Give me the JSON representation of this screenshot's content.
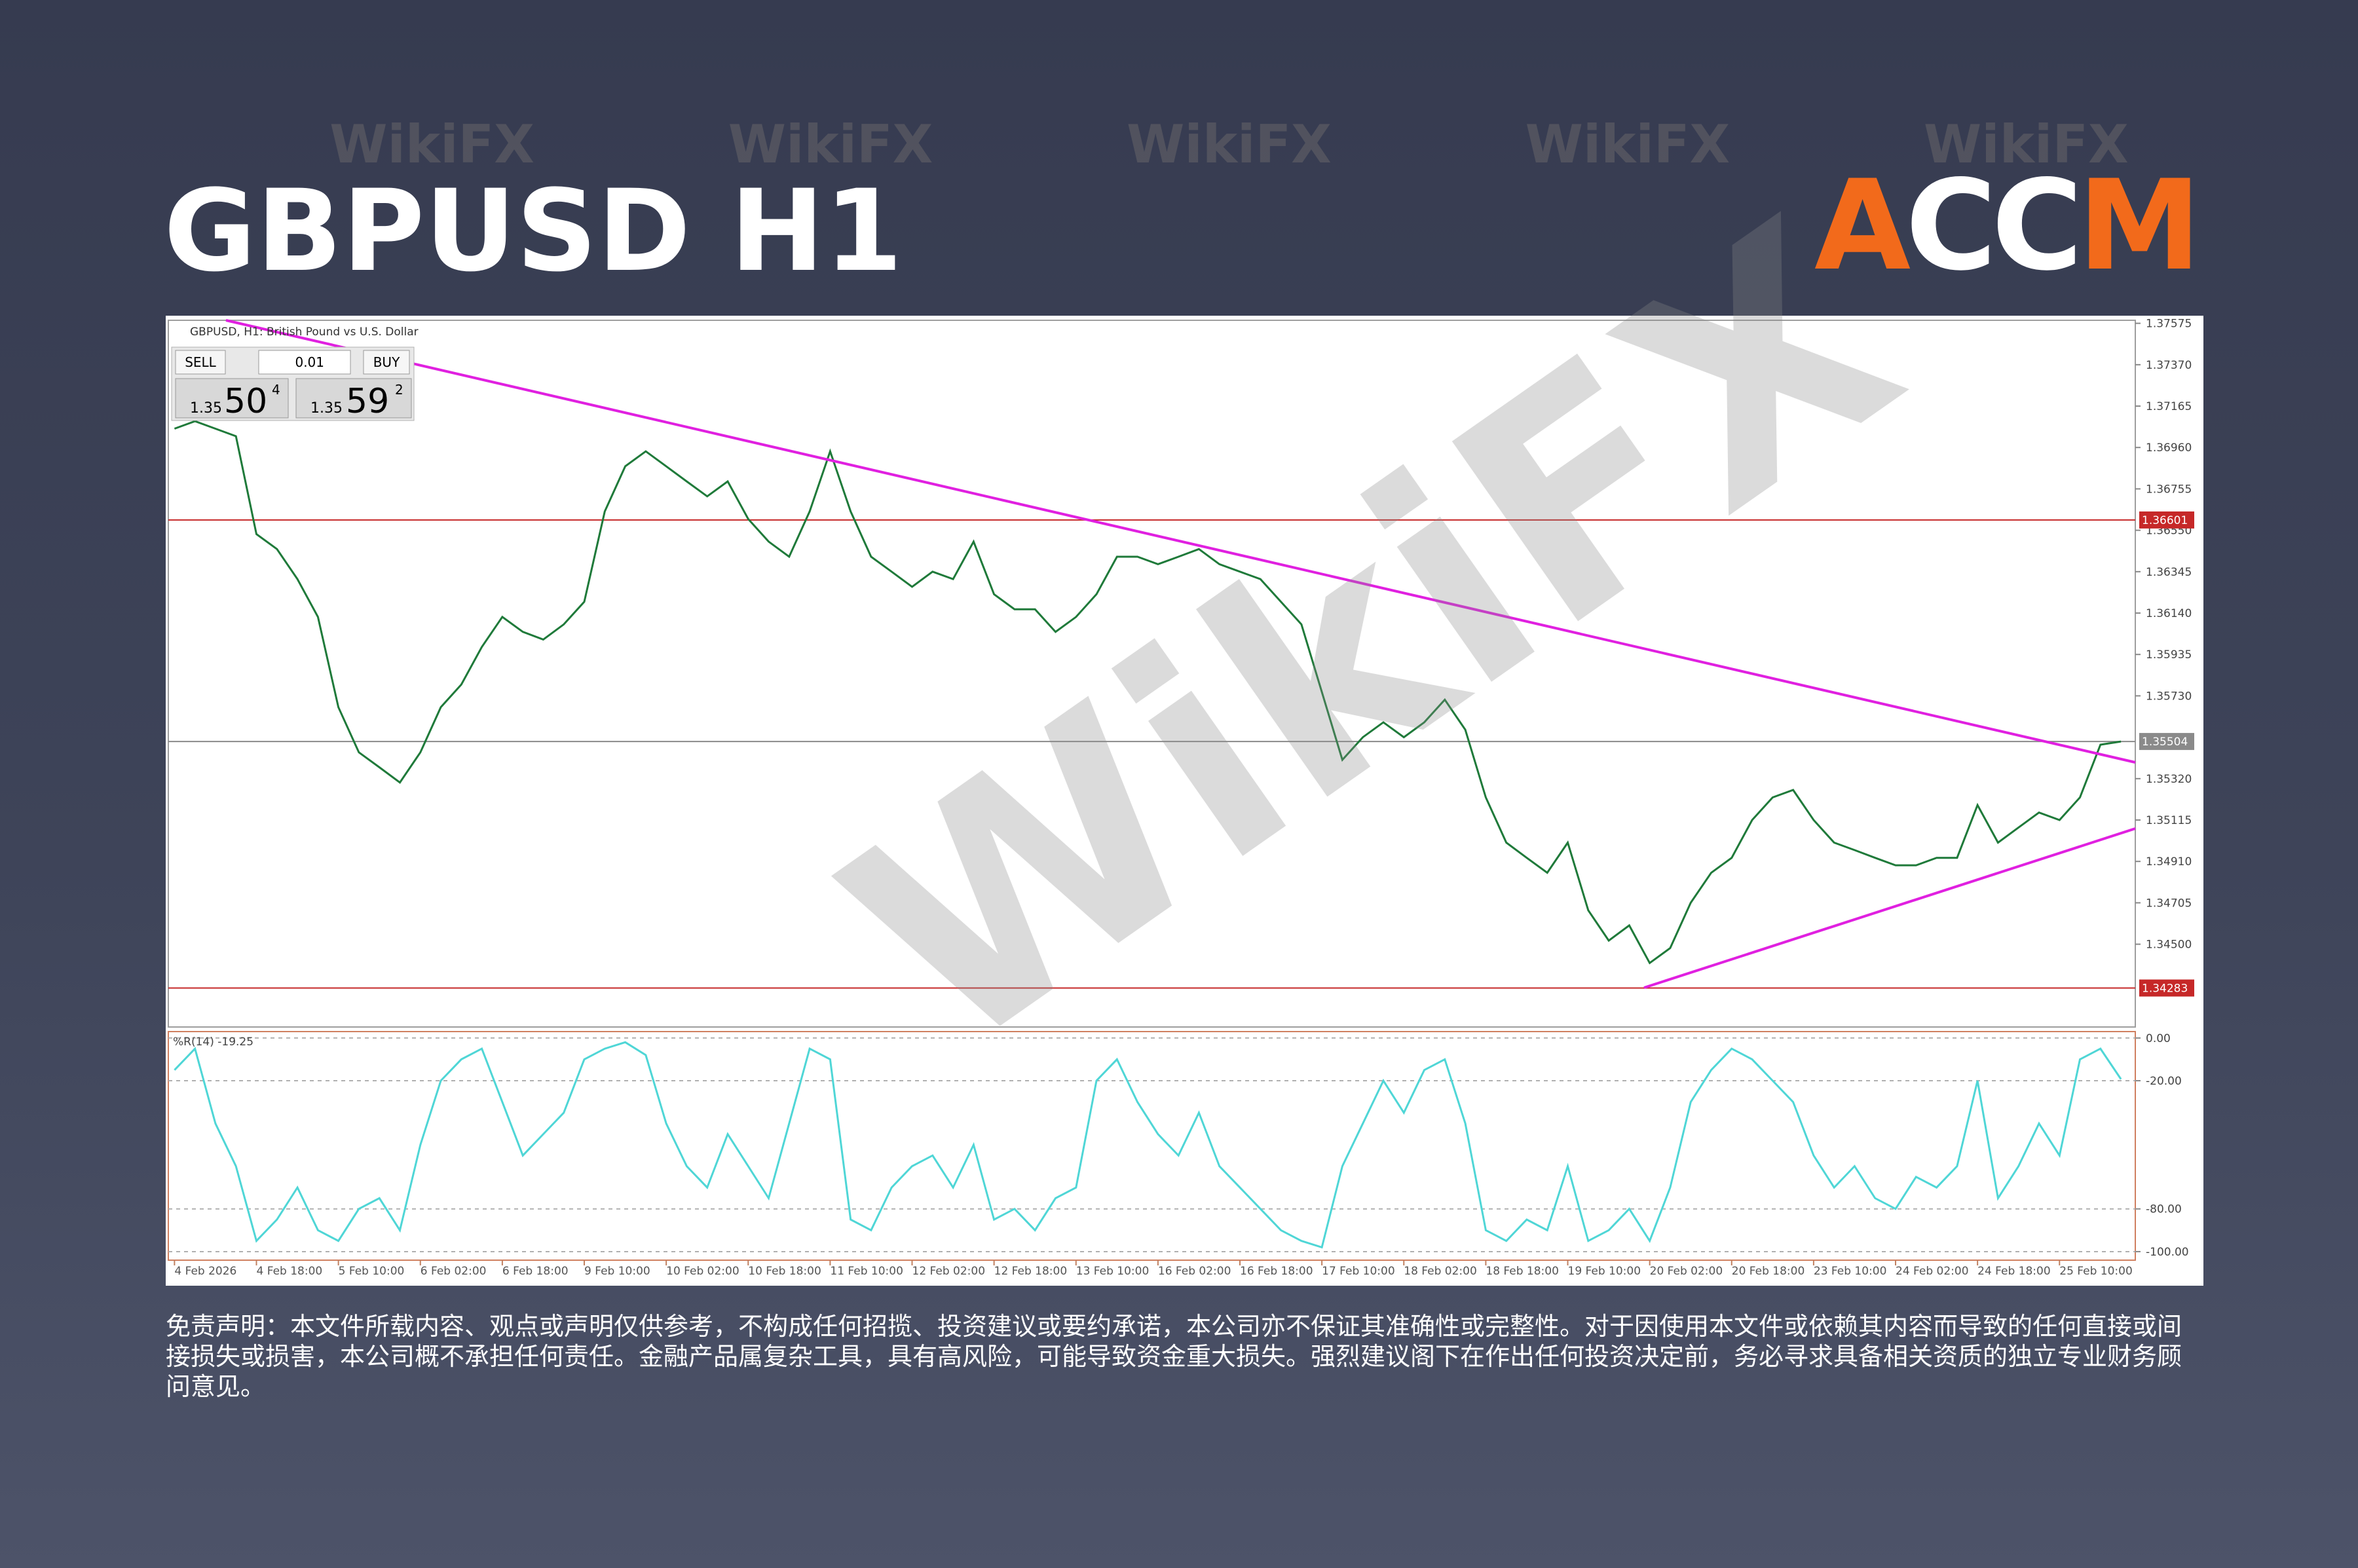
{
  "header": {
    "title": "GBPUSD H1",
    "logo": [
      "A",
      "CC",
      "M"
    ]
  },
  "watermark": "WikiFX",
  "trade_panel": {
    "sell": "SELL",
    "buy": "BUY",
    "volume": "0.01",
    "bid": {
      "prefix": "1.35",
      "big": "50",
      "sup": "4"
    },
    "ask": {
      "prefix": "1.35",
      "big": "59",
      "sup": "2"
    }
  },
  "chart_data": [
    {
      "type": "line",
      "title": "GBPUSD, H1: British Pound vs U.S. Dollar",
      "color": "#1f7a3a",
      "categories": [
        "4 Feb 2026",
        null,
        null,
        null,
        "4 Feb 18:00",
        null,
        null,
        null,
        "5 Feb 10:00",
        null,
        null,
        null,
        "6 Feb 02:00",
        null,
        null,
        null,
        "6 Feb 18:00",
        null,
        null,
        null,
        "9 Feb 10:00",
        null,
        null,
        null,
        "10 Feb 02:00",
        null,
        null,
        null,
        "10 Feb 18:00",
        null,
        null,
        null,
        "11 Feb 10:00",
        null,
        null,
        null,
        "12 Feb 02:00",
        null,
        null,
        null,
        "12 Feb 18:00",
        null,
        null,
        null,
        "13 Feb 10:00",
        null,
        null,
        null,
        "16 Feb 02:00",
        null,
        null,
        null,
        "16 Feb 18:00",
        null,
        null,
        null,
        "17 Feb 10:00",
        null,
        null,
        null,
        "18 Feb 02:00",
        null,
        null,
        null,
        "18 Feb 18:00",
        null,
        null,
        null,
        "19 Feb 10:00",
        null,
        null,
        null,
        "20 Feb 02:00",
        null,
        null,
        null,
        "20 Feb 18:00",
        null,
        null,
        null,
        "23 Feb 10:00",
        null,
        null,
        null,
        "24 Feb 02:00",
        null,
        null,
        null,
        "24 Feb 18:00",
        null,
        null,
        null,
        "25 Feb 10:00",
        null,
        null,
        null
      ],
      "values": [
        1.37053,
        1.3709,
        1.37053,
        1.37016,
        1.36531,
        1.36457,
        1.36308,
        1.36121,
        1.35674,
        1.3545,
        1.35376,
        1.35301,
        1.3545,
        1.35674,
        1.35786,
        1.35972,
        1.36121,
        1.36047,
        1.36009,
        1.36084,
        1.36196,
        1.36643,
        1.36867,
        1.36941,
        1.36867,
        1.36792,
        1.36718,
        1.36792,
        1.36606,
        1.36494,
        1.36419,
        1.36643,
        1.36941,
        1.36643,
        1.36419,
        1.36345,
        1.3627,
        1.36345,
        1.36308,
        1.36494,
        1.36233,
        1.36159,
        1.36159,
        1.36047,
        1.36121,
        1.36233,
        1.36419,
        1.36419,
        1.36382,
        1.36419,
        1.36457,
        1.36382,
        1.36345,
        1.36308,
        1.36196,
        1.36084,
        1.35749,
        1.35413,
        1.35525,
        1.35599,
        1.35525,
        1.35599,
        1.35711,
        1.35562,
        1.35227,
        1.35003,
        1.34928,
        1.34854,
        1.35003,
        1.34668,
        1.34518,
        1.34593,
        1.34407,
        1.34481,
        1.34705,
        1.34854,
        1.34928,
        1.35115,
        1.35227,
        1.35264,
        1.35115,
        1.35003,
        1.34966,
        1.34928,
        1.34891,
        1.34891,
        1.34928,
        1.34928,
        1.35189,
        1.35003,
        1.35078,
        1.35152,
        1.35115,
        1.35227,
        1.35488,
        1.35504
      ],
      "ylim": [
        1.3409,
        1.3759
      ],
      "yticks": [
        1.37575,
        {
          "value": 1.3737,
          "label": "1.37370"
        },
        1.37165,
        {
          "value": 1.3696,
          "label": "1.36960"
        },
        1.36755,
        {
          "value": 1.3655,
          "label": "1.36550"
        },
        1.36345,
        {
          "value": 1.3614,
          "label": "1.36140"
        },
        1.35935,
        {
          "value": 1.3573,
          "label": "1.35730"
        },
        {
          "value": 1.3532,
          "label": "1.35320"
        },
        1.35115,
        {
          "value": 1.3491,
          "label": "1.34910"
        },
        1.34705,
        {
          "value": 1.345,
          "label": "1.34500"
        }
      ],
      "price_lines": [
        {
          "value": 1.36601,
          "color": "#c62828"
        },
        {
          "value": 1.35504,
          "color": "#8a8a8a"
        },
        {
          "value": 1.34283,
          "color": "#c62828"
        }
      ],
      "grid": false
    },
    {
      "type": "line",
      "title": "%R(14) -19.25",
      "color": "#4fd6d6",
      "values": [
        -15,
        -5,
        -40,
        -60,
        -95,
        -85,
        -70,
        -90,
        -95,
        -80,
        -75,
        -90,
        -50,
        -20,
        -10,
        -5,
        -30,
        -55,
        -45,
        -35,
        -10,
        -5,
        -2,
        -8,
        -40,
        -60,
        -70,
        -45,
        -60,
        -75,
        -40,
        -5,
        -10,
        -85,
        -90,
        -70,
        -60,
        -55,
        -70,
        -50,
        -85,
        -80,
        -90,
        -75,
        -70,
        -20,
        -10,
        -30,
        -45,
        -55,
        -35,
        -60,
        -70,
        -80,
        -90,
        -95,
        -98,
        -60,
        -40,
        -20,
        -35,
        -15,
        -10,
        -40,
        -90,
        -95,
        -85,
        -90,
        -60,
        -95,
        -90,
        -80,
        -95,
        -70,
        -30,
        -15,
        -5,
        -10,
        -20,
        -30,
        -55,
        -70,
        -60,
        -75,
        -80,
        -65,
        -70,
        -60,
        -20,
        -75,
        -60,
        -40,
        -55,
        -10,
        -5,
        -19.25
      ],
      "ylim": [
        -104,
        3
      ],
      "yticks": [
        {
          "value": 0,
          "label": "0.00"
        },
        {
          "value": -20,
          "label": "-20.00"
        },
        {
          "value": -80,
          "label": "-80.00"
        },
        {
          "value": -100,
          "label": "-100.00"
        }
      ],
      "grid": true
    }
  ],
  "disclaimer": "免责声明：本文件所载内容、观点或声明仅供参考，不构成任何招揽、投资建议或要约承诺，本公司亦不保证其准确性或完整性。对于因使用本文件或依赖其内容而导致的任何直接或间接损失或损害，本公司概不承担任何责任。金融产品属复杂工具，具有高风险，可能导致资金重大损失。强烈建议阁下在作出任何投资决定前，务必寻求具备相关资质的独立专业财务顾问意见。"
}
